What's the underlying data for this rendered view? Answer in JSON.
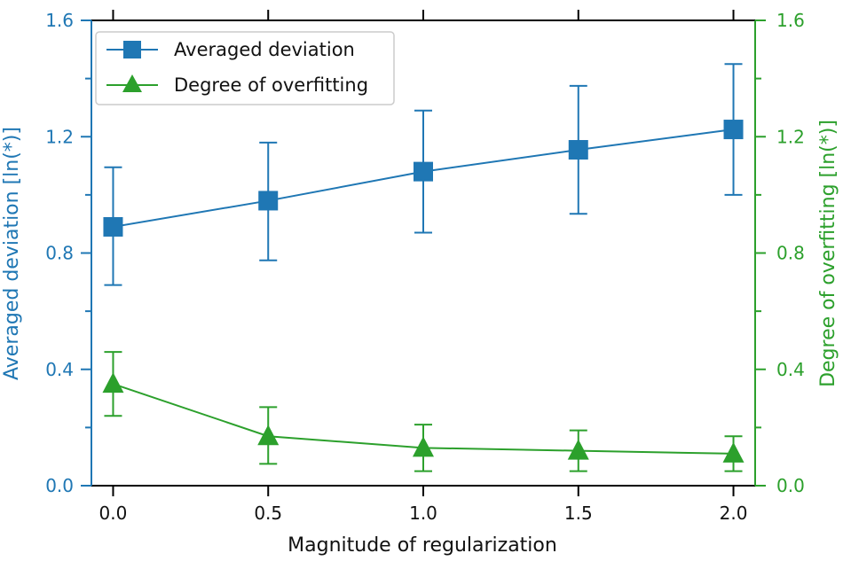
{
  "chart_data": {
    "type": "line",
    "x": [
      0.0,
      0.5,
      1.0,
      1.5,
      2.0
    ],
    "x_tick_labels": [
      "0.0",
      "0.5",
      "1.0",
      "1.5",
      "2.0"
    ],
    "xlabel": "Magnitude of regularization",
    "xlim": [
      -0.07,
      2.07
    ],
    "ylabel_left": "Averaged deviation [ln(*)]",
    "ylabel_right": "Degree of overfitting [ln(*)]",
    "ylim_left": [
      0,
      1.6
    ],
    "ylim_right": [
      0,
      1.6
    ],
    "y_ticks_left": [
      "0.0",
      "0.4",
      "0.8",
      "1.2",
      "1.6"
    ],
    "y_ticks_right": [
      "0.0",
      "0.4",
      "0.8",
      "1.2",
      "1.6"
    ],
    "grid": false,
    "legend_position": "top-left",
    "series": [
      {
        "name": "Averaged deviation",
        "axis": "left",
        "marker": "square",
        "color": "#1f77b4",
        "values": [
          0.89,
          0.98,
          1.08,
          1.155,
          1.225
        ],
        "err_low": [
          0.69,
          0.775,
          0.87,
          0.935,
          1.0
        ],
        "err_high": [
          1.095,
          1.18,
          1.29,
          1.375,
          1.45
        ]
      },
      {
        "name": "Degree of overfitting",
        "axis": "right",
        "marker": "triangle",
        "color": "#2ca02c",
        "values": [
          0.35,
          0.17,
          0.13,
          0.12,
          0.11
        ],
        "err_low": [
          0.24,
          0.075,
          0.05,
          0.05,
          0.05
        ],
        "err_high": [
          0.46,
          0.27,
          0.21,
          0.19,
          0.17
        ]
      }
    ]
  },
  "colors": {
    "left_axis": "#1f77b4",
    "right_axis": "#2ca02c",
    "frame": "#000000"
  }
}
